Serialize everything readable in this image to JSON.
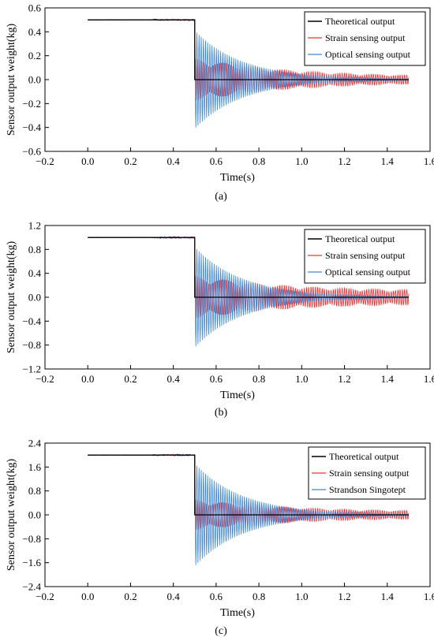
{
  "chart_data": [
    {
      "type": "line",
      "panel_label": "(a)",
      "xlabel": "Time(s)",
      "ylabel": "Sensor output weight(kg)",
      "xlim": [
        -0.2,
        1.6
      ],
      "ylim": [
        -0.6,
        0.6
      ],
      "xticks": [
        -0.2,
        0.0,
        0.2,
        0.4,
        0.6,
        0.8,
        1.0,
        1.2,
        1.4,
        1.6
      ],
      "yticks": [
        -0.6,
        -0.4,
        -0.2,
        0.0,
        0.2,
        0.4,
        0.6
      ],
      "xtick_labels": [
        "−0.2",
        "0.0",
        "0.2",
        "0.4",
        "0.6",
        "0.8",
        "1.0",
        "1.2",
        "1.4",
        "1.6"
      ],
      "ytick_labels": [
        "−0.6",
        "−0.4",
        "−0.2",
        "0.0",
        "0.2",
        "0.4",
        "0.6"
      ],
      "legend_position": "top-right",
      "step_value": 0.5,
      "step_time": 0.5,
      "series": [
        {
          "name": "Theoretical output",
          "color": "#000000",
          "kind": "step",
          "pre": 0.5,
          "post": 0.0
        },
        {
          "name": "Strain sensing output",
          "color": "#ee3333",
          "kind": "beat",
          "pre": 0.5,
          "amp0": 0.35,
          "amp_end": 0.02
        },
        {
          "name": "Optical sensing output",
          "color": "#3f86d4",
          "kind": "decay",
          "pre": 0.5,
          "amp0": 0.41,
          "amp_end": 0.005
        }
      ]
    },
    {
      "type": "line",
      "panel_label": "(b)",
      "xlabel": "Time(s)",
      "ylabel": "Sensor output weight(kg)",
      "xlim": [
        -0.2,
        1.6
      ],
      "ylim": [
        -1.2,
        1.2
      ],
      "xticks": [
        -0.2,
        0.0,
        0.2,
        0.4,
        0.6,
        0.8,
        1.0,
        1.2,
        1.4,
        1.6
      ],
      "yticks": [
        -1.2,
        -0.8,
        -0.4,
        0.0,
        0.4,
        0.8,
        1.2
      ],
      "xtick_labels": [
        "−0.2",
        "0.0",
        "0.2",
        "0.4",
        "0.6",
        "0.8",
        "1.0",
        "1.2",
        "1.4",
        "1.6"
      ],
      "ytick_labels": [
        "−1.2",
        "−0.8",
        "−0.4",
        "0.0",
        "0.4",
        "0.8",
        "1.2"
      ],
      "legend_position": "top-right",
      "step_value": 1.0,
      "step_time": 0.5,
      "series": [
        {
          "name": "Theoretical output",
          "color": "#000000",
          "kind": "step",
          "pre": 1.0,
          "post": 0.0
        },
        {
          "name": "Strain sensing output",
          "color": "#ee3333",
          "kind": "beat",
          "pre": 1.0,
          "amp0": 0.7,
          "amp_end": 0.1
        },
        {
          "name": "Optical sensing output",
          "color": "#3f86d4",
          "kind": "decay",
          "pre": 1.0,
          "amp0": 0.84,
          "amp_end": 0.01
        }
      ]
    },
    {
      "type": "line",
      "panel_label": "(c)",
      "xlabel": "Time(s)",
      "ylabel": "Sensor output weight(kg)",
      "xlim": [
        -0.2,
        1.6
      ],
      "ylim": [
        -2.4,
        2.4
      ],
      "xticks": [
        -0.2,
        0.0,
        0.2,
        0.4,
        0.6,
        0.8,
        1.0,
        1.2,
        1.4,
        1.6
      ],
      "yticks": [
        -2.4,
        -1.6,
        -0.8,
        0.0,
        0.8,
        1.6,
        2.4
      ],
      "xtick_labels": [
        "−0.2",
        "0.0",
        "0.2",
        "0.4",
        "0.6",
        "0.8",
        "1.0",
        "1.2",
        "1.4",
        "1.6"
      ],
      "ytick_labels": [
        "−2.4",
        "−1.6",
        "−0.8",
        "0.0",
        "0.8",
        "1.6",
        "2.4"
      ],
      "legend_position": "top-right",
      "step_value": 2.0,
      "step_time": 0.5,
      "series": [
        {
          "name": "Theoretical output",
          "color": "#000000",
          "kind": "step",
          "pre": 2.0,
          "post": 0.0
        },
        {
          "name": "Strain sensing output",
          "color": "#ee3333",
          "kind": "beat",
          "pre": 2.0,
          "amp0": 1.0,
          "amp_end": 0.1
        },
        {
          "name": "Strandson Singotept",
          "color": "#3f86d4",
          "kind": "decay",
          "pre": 2.0,
          "amp0": 1.72,
          "amp_end": 0.02
        }
      ]
    }
  ]
}
